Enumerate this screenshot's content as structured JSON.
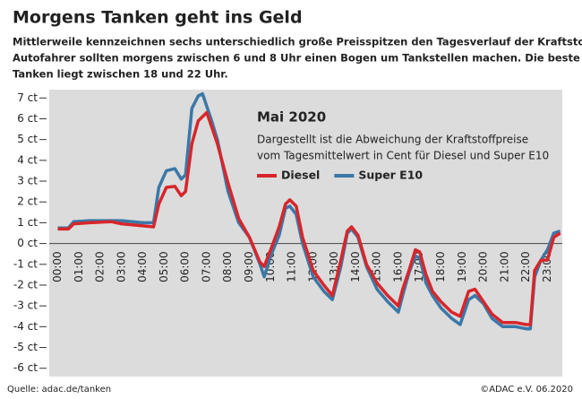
{
  "chart_data": {
    "type": "line",
    "title": "Morgens Tanken geht ins Geld",
    "subtitle": [
      "Mittlerweile kennzeichnen sechs unterschiedlich große Preisspitzen den Tagesverlauf der Kraftstoffpreise.",
      "Autofahrer sollten morgens zwischen 6 und 8 Uhr einen Bogen um Tankstellen machen. Die beste Zeit zum",
      "Tanken liegt zwischen 18 und 22 Uhr."
    ],
    "annotation": {
      "title": "Mai 2020",
      "lines": [
        "Dargestellt ist die Abweichung der Kraftstoffpreise",
        "vom Tagesmittelwert in Cent für Diesel und Super E10"
      ]
    },
    "source": "Quelle: adac.de/tanken",
    "credit": "©ADAC e.V.  06.2020",
    "x": [
      0,
      0.5,
      0.75,
      1.5,
      2.5,
      3.0,
      3.5,
      4.0,
      4.5,
      4.75,
      5.1,
      5.5,
      5.8,
      6.0,
      6.3,
      6.6,
      6.8,
      7.0,
      7.2,
      7.5,
      8.0,
      8.5,
      9.0,
      9.5,
      9.7,
      10.0,
      10.4,
      10.7,
      10.9,
      11.2,
      11.5,
      12.0,
      12.5,
      12.9,
      13.3,
      13.6,
      13.8,
      14.1,
      14.5,
      15.0,
      15.5,
      16.0,
      16.2,
      16.5,
      16.8,
      17.0,
      17.3,
      17.6,
      18.0,
      18.5,
      18.9,
      19.3,
      19.6,
      20.0,
      20.4,
      20.9,
      21.5,
      22.0,
      22.2,
      22.4,
      22.7,
      23.0,
      23.3,
      23.6
    ],
    "series": [
      {
        "name": "Diesel",
        "color": "#d7262b",
        "values": [
          0.7,
          0.7,
          0.95,
          1.0,
          1.05,
          0.95,
          0.9,
          0.85,
          0.8,
          1.9,
          2.7,
          2.75,
          2.3,
          2.5,
          4.8,
          5.9,
          6.1,
          6.3,
          5.7,
          4.8,
          2.9,
          1.2,
          0.3,
          -0.9,
          -1.1,
          -0.3,
          0.8,
          1.9,
          2.1,
          1.8,
          0.3,
          -1.3,
          -2.0,
          -2.5,
          -0.8,
          0.6,
          0.8,
          0.4,
          -1.0,
          -1.9,
          -2.5,
          -3.0,
          -2.2,
          -1.3,
          -0.3,
          -0.4,
          -1.5,
          -2.3,
          -2.8,
          -3.3,
          -3.5,
          -2.3,
          -2.2,
          -2.8,
          -3.4,
          -3.8,
          -3.8,
          -3.9,
          -3.9,
          -1.3,
          -0.8,
          -0.8,
          0.3,
          0.5
        ]
      },
      {
        "name": "Super E10",
        "color": "#3a78a8",
        "values": [
          0.75,
          0.75,
          1.05,
          1.1,
          1.1,
          1.1,
          1.05,
          1.0,
          1.0,
          2.7,
          3.5,
          3.6,
          3.1,
          3.3,
          6.5,
          7.1,
          7.2,
          6.6,
          6.0,
          5.0,
          2.5,
          1.0,
          0.3,
          -1.0,
          -1.6,
          -0.6,
          0.4,
          1.7,
          1.8,
          1.4,
          0.0,
          -1.6,
          -2.3,
          -2.7,
          -1.1,
          0.5,
          0.7,
          0.3,
          -1.1,
          -2.2,
          -2.8,
          -3.3,
          -2.5,
          -1.4,
          -0.6,
          -0.7,
          -1.9,
          -2.5,
          -3.1,
          -3.6,
          -3.9,
          -2.7,
          -2.5,
          -2.9,
          -3.6,
          -4.0,
          -4.0,
          -4.1,
          -4.1,
          -1.6,
          -0.8,
          -0.3,
          0.5,
          0.6
        ]
      }
    ],
    "xlim": [
      -0.4,
      23.7
    ],
    "ylim": [
      -6.4,
      7.4
    ],
    "xticks": [
      {
        "value": 0,
        "label": "00:00"
      },
      {
        "value": 1,
        "label": "01:00"
      },
      {
        "value": 2,
        "label": "02:00"
      },
      {
        "value": 3,
        "label": "03:00"
      },
      {
        "value": 4,
        "label": "04:00"
      },
      {
        "value": 5,
        "label": "05:00"
      },
      {
        "value": 6,
        "label": "06:00"
      },
      {
        "value": 7,
        "label": "07:00"
      },
      {
        "value": 8,
        "label": "08:00"
      },
      {
        "value": 9,
        "label": "09:00"
      },
      {
        "value": 10,
        "label": "10:00"
      },
      {
        "value": 11,
        "label": "11:00"
      },
      {
        "value": 12,
        "label": "12:00"
      },
      {
        "value": 13,
        "label": "13:00"
      },
      {
        "value": 14,
        "label": "14:00"
      },
      {
        "value": 15,
        "label": "15:00"
      },
      {
        "value": 16,
        "label": "16:00"
      },
      {
        "value": 17,
        "label": "17:00"
      },
      {
        "value": 18,
        "label": "18:00"
      },
      {
        "value": 19,
        "label": "19:00"
      },
      {
        "value": 20,
        "label": "20:00"
      },
      {
        "value": 21,
        "label": "21:00"
      },
      {
        "value": 22,
        "label": "22:00"
      },
      {
        "value": 23,
        "label": "23:00"
      }
    ],
    "yticks": [
      {
        "value": 7,
        "label": "7 ct"
      },
      {
        "value": 6,
        "label": "6 ct"
      },
      {
        "value": 5,
        "label": "5 ct"
      },
      {
        "value": 4,
        "label": "4 ct"
      },
      {
        "value": 3,
        "label": "3 ct"
      },
      {
        "value": 2,
        "label": "2 ct"
      },
      {
        "value": 1,
        "label": "1 ct"
      },
      {
        "value": 0,
        "label": "0 ct"
      },
      {
        "value": -1,
        "label": "-1 ct"
      },
      {
        "value": -2,
        "label": "-2 ct"
      },
      {
        "value": -3,
        "label": "-3 ct"
      },
      {
        "value": -4,
        "label": "-4 ct"
      },
      {
        "value": -5,
        "label": "-5 ct"
      },
      {
        "value": -6,
        "label": "-6 ct"
      }
    ],
    "grid": false
  }
}
